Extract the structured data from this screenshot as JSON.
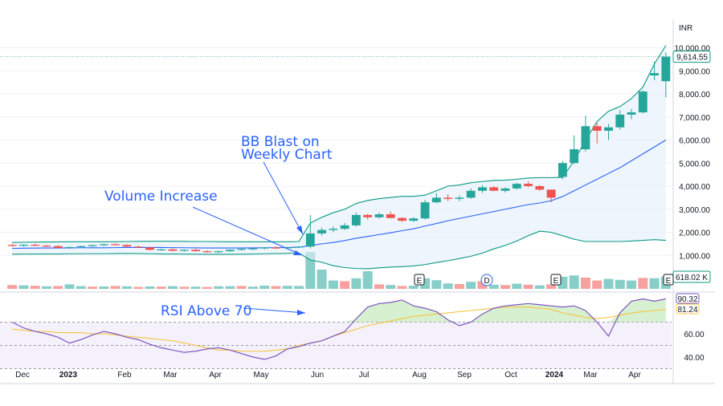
{
  "chart_data": {
    "type": "candlestick",
    "currency_label": "INR",
    "price_axis": {
      "ticks": [
        "10,000.00",
        "9,000.00",
        "8,000.00",
        "7,000.00",
        "6,000.00",
        "5,000.00",
        "4,000.00",
        "3,000.00",
        "2,000.00",
        "1,000.00"
      ],
      "ylim": [
        0,
        10500
      ]
    },
    "last_price_label": "9,614.55",
    "volume_label": "618.02 K",
    "x_labels": [
      "Dec",
      "2023",
      "Feb",
      "Mar",
      "Apr",
      "May",
      "Jun",
      "Jul",
      "Aug",
      "Sep",
      "Oct",
      "2024",
      "Mar",
      "Apr"
    ],
    "candles": [
      [
        1450,
        1500,
        1380,
        1420
      ],
      [
        1420,
        1480,
        1380,
        1460
      ],
      [
        1460,
        1500,
        1400,
        1420
      ],
      [
        1420,
        1460,
        1360,
        1400
      ],
      [
        1400,
        1440,
        1300,
        1320
      ],
      [
        1320,
        1380,
        1280,
        1360
      ],
      [
        1360,
        1420,
        1320,
        1400
      ],
      [
        1400,
        1460,
        1360,
        1440
      ],
      [
        1440,
        1500,
        1400,
        1480
      ],
      [
        1480,
        1520,
        1420,
        1450
      ],
      [
        1450,
        1480,
        1360,
        1380
      ],
      [
        1380,
        1420,
        1320,
        1340
      ],
      [
        1340,
        1380,
        1220,
        1240
      ],
      [
        1240,
        1300,
        1200,
        1260
      ],
      [
        1260,
        1300,
        1180,
        1200
      ],
      [
        1200,
        1260,
        1160,
        1240
      ],
      [
        1240,
        1280,
        1160,
        1180
      ],
      [
        1180,
        1220,
        1120,
        1140
      ],
      [
        1140,
        1200,
        1100,
        1180
      ],
      [
        1180,
        1260,
        1160,
        1240
      ],
      [
        1240,
        1300,
        1200,
        1280
      ],
      [
        1280,
        1320,
        1220,
        1300
      ],
      [
        1300,
        1360,
        1260,
        1340
      ],
      [
        1340,
        1380,
        1280,
        1320
      ],
      [
        1320,
        1360,
        1280,
        1350
      ],
      [
        1350,
        1400,
        1320,
        1380
      ],
      [
        1380,
        2750,
        1300,
        1950
      ],
      [
        1950,
        2200,
        1850,
        2100
      ],
      [
        2100,
        2250,
        2000,
        2150
      ],
      [
        2150,
        2400,
        2100,
        2300
      ],
      [
        2300,
        2850,
        2250,
        2750
      ],
      [
        2750,
        2800,
        2550,
        2650
      ],
      [
        2650,
        2850,
        2600,
        2780
      ],
      [
        2780,
        2900,
        2600,
        2620
      ],
      [
        2620,
        2650,
        2450,
        2500
      ],
      [
        2500,
        2650,
        2450,
        2600
      ],
      [
        2600,
        3400,
        2550,
        3300
      ],
      [
        3300,
        3700,
        3250,
        3500
      ],
      [
        3500,
        3650,
        3350,
        3450
      ],
      [
        3450,
        3600,
        3350,
        3500
      ],
      [
        3500,
        3900,
        3450,
        3800
      ],
      [
        3800,
        4050,
        3700,
        3950
      ],
      [
        3950,
        4000,
        3780,
        3800
      ],
      [
        3800,
        3950,
        3720,
        3900
      ],
      [
        3900,
        4150,
        3850,
        4100
      ],
      [
        4100,
        4200,
        3950,
        4000
      ],
      [
        4000,
        4050,
        3800,
        3850
      ],
      [
        3850,
        3850,
        3300,
        3500
      ],
      [
        4400,
        5100,
        4300,
        5000
      ],
      [
        5000,
        6200,
        4950,
        5600
      ],
      [
        5600,
        7050,
        5500,
        6600
      ],
      [
        6600,
        6750,
        5850,
        6400
      ],
      [
        6400,
        6700,
        6000,
        6550
      ],
      [
        6550,
        7300,
        6450,
        7100
      ],
      [
        7100,
        7350,
        6900,
        7200
      ],
      [
        7200,
        8150,
        7150,
        8100
      ],
      [
        8800,
        9400,
        8600,
        8900
      ],
      [
        8550,
        9800,
        7850,
        9614
      ]
    ],
    "volumes": [
      [
        120,
        false
      ],
      [
        110,
        true
      ],
      [
        95,
        false
      ],
      [
        80,
        true
      ],
      [
        90,
        false
      ],
      [
        140,
        true
      ],
      [
        85,
        true
      ],
      [
        70,
        false
      ],
      [
        75,
        true
      ],
      [
        90,
        false
      ],
      [
        80,
        true
      ],
      [
        60,
        false
      ],
      [
        75,
        true
      ],
      [
        70,
        false
      ],
      [
        85,
        true
      ],
      [
        65,
        false
      ],
      [
        70,
        true
      ],
      [
        60,
        false
      ],
      [
        80,
        true
      ],
      [
        85,
        true
      ],
      [
        90,
        false
      ],
      [
        70,
        true
      ],
      [
        100,
        true
      ],
      [
        85,
        false
      ],
      [
        95,
        true
      ],
      [
        90,
        true
      ],
      [
        1150,
        true
      ],
      [
        600,
        true
      ],
      [
        260,
        true
      ],
      [
        240,
        false
      ],
      [
        330,
        true
      ],
      [
        550,
        true
      ],
      [
        140,
        false
      ],
      [
        120,
        true
      ],
      [
        90,
        false
      ],
      [
        100,
        true
      ],
      [
        330,
        true
      ],
      [
        270,
        true
      ],
      [
        170,
        true
      ],
      [
        150,
        false
      ],
      [
        220,
        true
      ],
      [
        240,
        false
      ],
      [
        130,
        true
      ],
      [
        120,
        false
      ],
      [
        160,
        true
      ],
      [
        130,
        false
      ],
      [
        110,
        true
      ],
      [
        140,
        false
      ],
      [
        380,
        true
      ],
      [
        420,
        true
      ],
      [
        350,
        false
      ],
      [
        260,
        false
      ],
      [
        310,
        true
      ],
      [
        280,
        true
      ],
      [
        260,
        true
      ],
      [
        340,
        false
      ],
      [
        330,
        true
      ],
      [
        380,
        true
      ]
    ],
    "bb_upper": [
      1560,
      1570,
      1575,
      1580,
      1585,
      1590,
      1590,
      1590,
      1590,
      1595,
      1600,
      1605,
      1610,
      1610,
      1610,
      1605,
      1600,
      1600,
      1595,
      1590,
      1590,
      1590,
      1590,
      1590,
      1590,
      1600,
      2400,
      2650,
      2850,
      3000,
      3250,
      3380,
      3460,
      3510,
      3560,
      3560,
      3610,
      3800,
      4000,
      4050,
      4150,
      4200,
      4250,
      4260,
      4300,
      4350,
      4370,
      4370,
      4380,
      5100,
      6000,
      6800,
      7250,
      7450,
      7800,
      8300,
      9300,
      10100
    ],
    "bb_middle": [
      1300,
      1310,
      1315,
      1320,
      1320,
      1325,
      1330,
      1330,
      1330,
      1335,
      1340,
      1340,
      1340,
      1340,
      1335,
      1330,
      1325,
      1320,
      1320,
      1320,
      1320,
      1325,
      1330,
      1335,
      1340,
      1350,
      1420,
      1500,
      1560,
      1640,
      1740,
      1820,
      1900,
      1980,
      2070,
      2150,
      2270,
      2380,
      2500,
      2600,
      2700,
      2800,
      2900,
      3000,
      3100,
      3200,
      3270,
      3370,
      3550,
      3800,
      4050,
      4300,
      4550,
      4800,
      5100,
      5400,
      5700,
      6000
    ],
    "bb_lower": [
      1050,
      1055,
      1060,
      1060,
      1060,
      1065,
      1070,
      1070,
      1070,
      1075,
      1080,
      1075,
      1070,
      1060,
      1060,
      1055,
      1050,
      1045,
      1045,
      1045,
      1050,
      1055,
      1065,
      1075,
      1085,
      1100,
      800,
      700,
      550,
      470,
      430,
      420,
      460,
      490,
      510,
      540,
      600,
      690,
      770,
      860,
      960,
      1100,
      1280,
      1430,
      1620,
      1850,
      2050,
      2000,
      1850,
      1700,
      1600,
      1600,
      1600,
      1600,
      1620,
      1650,
      1680,
      1650
    ],
    "rsi": {
      "ticks": [
        "60.00",
        "40.00"
      ],
      "bands": [
        70,
        30
      ],
      "ylim": [
        35,
        95
      ],
      "value_label": "90.32",
      "ma_label": "81.24",
      "rsi_values": [
        70,
        65,
        62,
        60,
        57,
        52,
        55,
        59,
        62,
        60,
        57,
        55,
        51,
        48,
        46,
        44,
        45,
        47,
        48,
        46,
        43,
        40,
        38,
        41,
        47,
        49,
        52,
        54,
        58,
        62,
        73,
        83,
        86,
        87,
        89,
        84,
        82,
        79,
        72,
        67,
        70,
        77,
        82,
        84,
        85,
        86,
        85,
        84,
        83,
        84,
        80,
        70,
        58,
        78,
        88,
        90,
        88,
        90
      ],
      "ma_values": [
        64,
        63,
        62,
        62,
        61,
        61,
        61,
        60,
        60,
        59,
        58,
        57,
        56,
        55,
        54,
        52,
        50,
        48,
        46,
        46,
        45,
        45,
        45,
        46,
        47,
        50,
        52,
        54,
        58,
        61,
        64,
        67,
        69,
        71,
        73,
        75,
        76,
        77,
        78,
        79,
        80,
        81,
        82,
        83,
        83,
        83,
        82,
        81,
        78,
        76,
        74,
        73,
        74,
        76,
        78,
        79,
        80,
        81
      ]
    },
    "annotations": [
      {
        "text_lines": [
          "BB Blast on",
          "Weekly Chart"
        ]
      },
      {
        "text_lines": [
          "Volume Increase"
        ]
      },
      {
        "text_lines": [
          "RSI Above 70"
        ]
      }
    ],
    "event_markers": [
      "E",
      "D",
      "E",
      "E"
    ],
    "colors": {
      "up": "#26a69a",
      "down": "#ef5350",
      "bb_mid": "#2962ff",
      "bb_band": "#089981",
      "bb_fill": "#e3effb",
      "rsi_line": "#7e57c2",
      "rsi_ma": "#f5c542",
      "rsi_fill": "#ede7f6",
      "annotation": "#2962ff",
      "price_tag": "#089981"
    }
  }
}
